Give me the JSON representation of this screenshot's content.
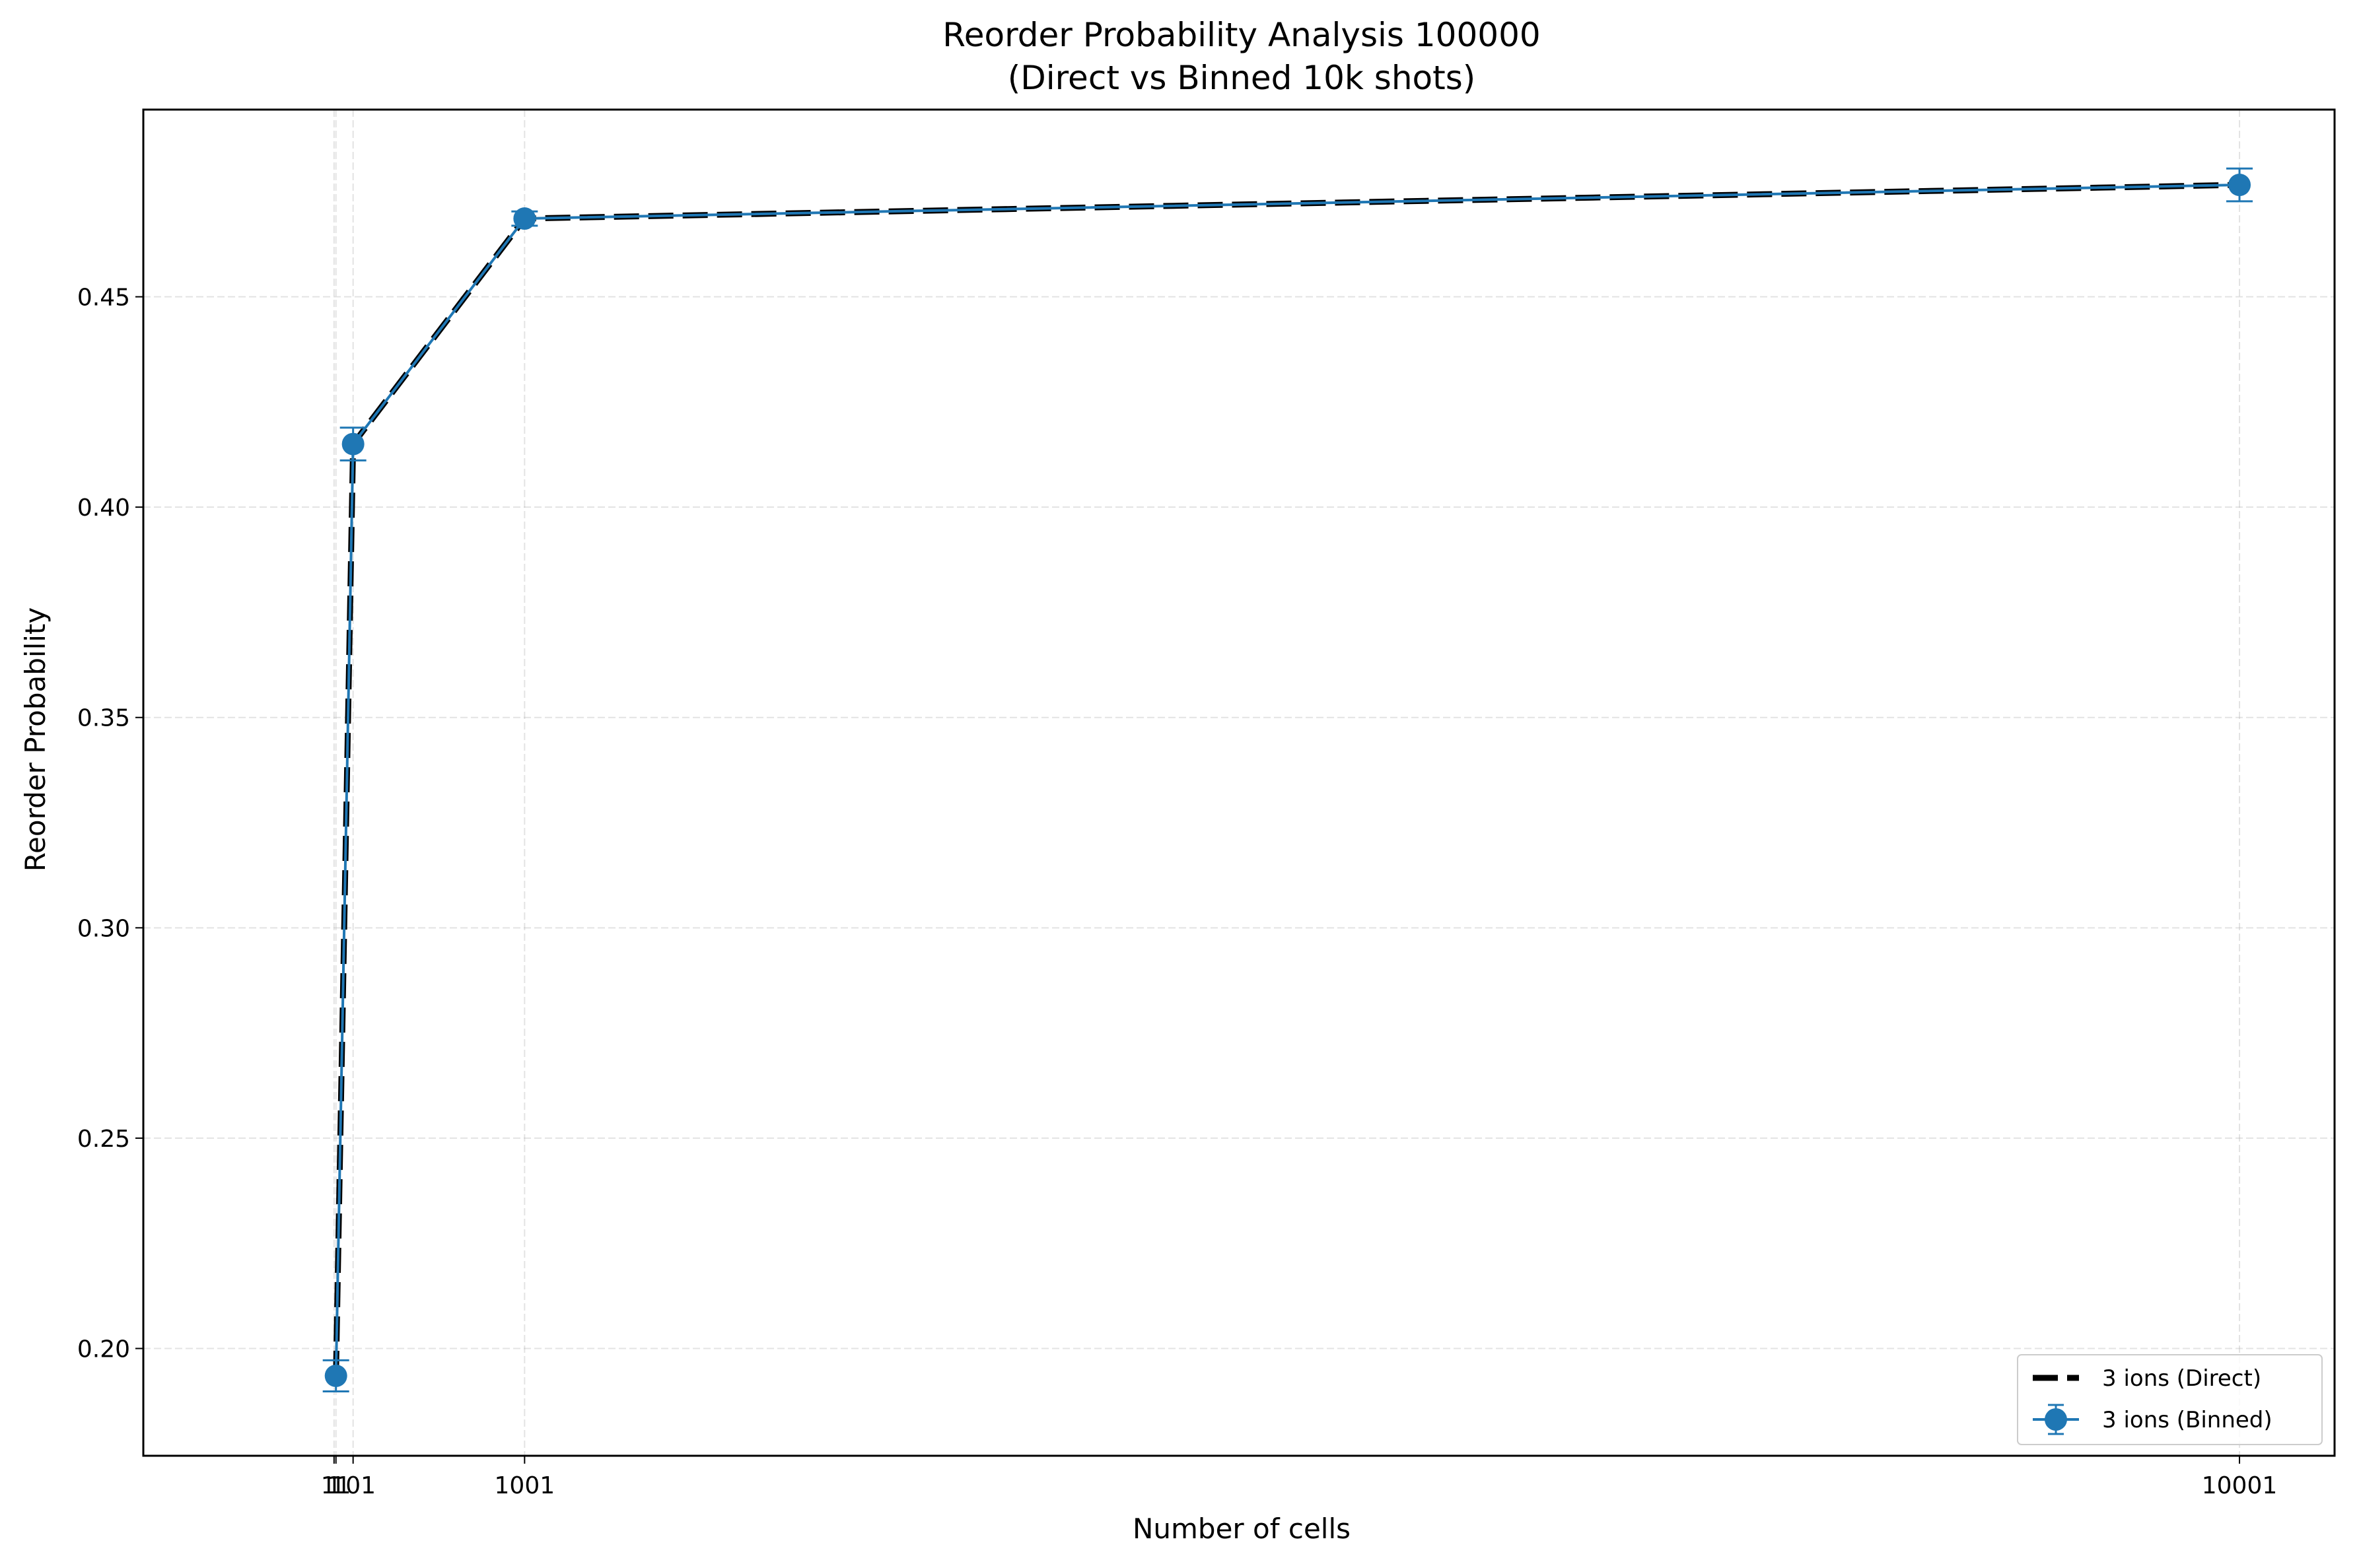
{
  "chart_data": {
    "type": "line",
    "title": "Reorder Probability Analysis 100000",
    "subtitle": "(Direct vs Binned 10k shots)",
    "xlabel": "Number of cells",
    "ylabel": "Reorder Probability",
    "x_ticks": [
      1,
      11,
      101,
      1001,
      10001
    ],
    "x_tick_labels": [
      "1",
      "11",
      "101",
      "1001",
      "10001"
    ],
    "y_ticks": [
      0.2,
      0.25,
      0.3,
      0.35,
      0.4,
      0.45
    ],
    "y_tick_labels": [
      "0.20",
      "0.25",
      "0.30",
      "0.35",
      "0.40",
      "0.45"
    ],
    "xlim": [
      -1000,
      10500
    ],
    "ylim": [
      0.1745,
      0.4945
    ],
    "grid": true,
    "legend_position": "lower-right",
    "series": [
      {
        "name": "3 ions (Direct)",
        "style": "dashed",
        "color": "#000000",
        "x": [
          11,
          101,
          1001,
          10001
        ],
        "y": [
          0.1935,
          0.415,
          0.4686,
          0.4766
        ]
      },
      {
        "name": "3 ions (Binned)",
        "style": "solid-markers-errorbars",
        "color": "#1f77b4",
        "x": [
          11,
          101,
          1001,
          10001
        ],
        "y": [
          0.1935,
          0.415,
          0.4686,
          0.4766
        ],
        "yerr": [
          0.0037,
          0.0039,
          0.0017,
          0.0039
        ]
      }
    ]
  }
}
